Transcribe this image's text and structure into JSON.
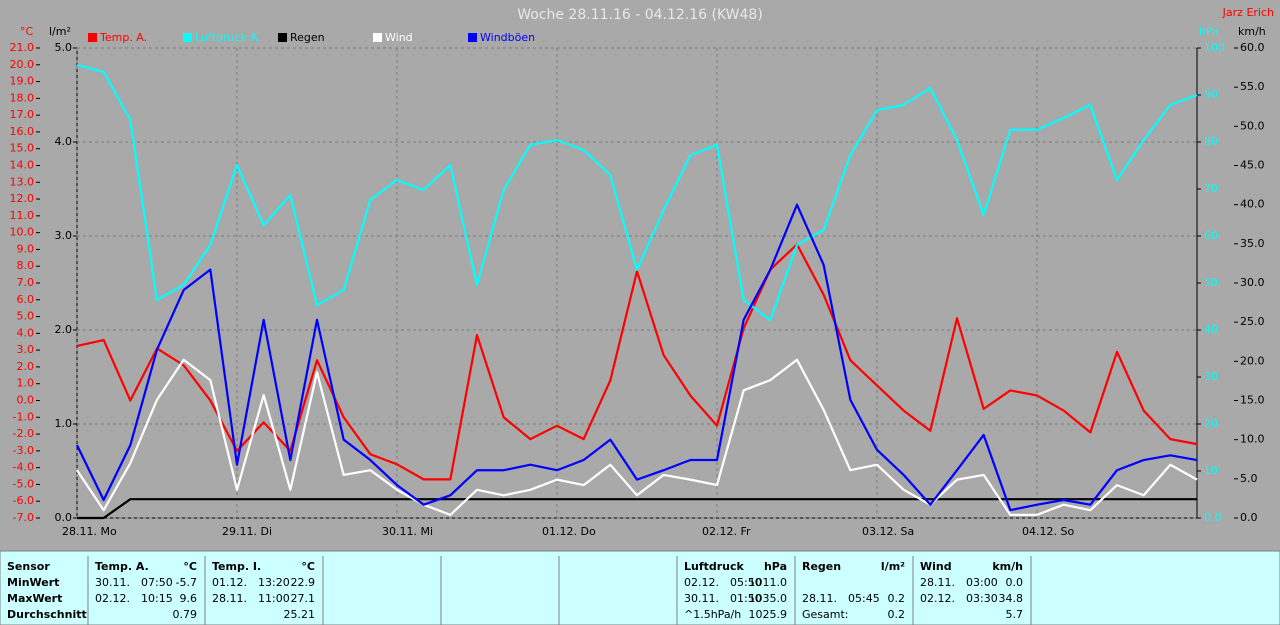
{
  "chart_data": {
    "type": "line",
    "title": "Woche 28.11.16 - 04.12.16 (KW48)",
    "author": "Jarz Erich",
    "y_unit": "°C",
    "y2_unit": "l/m²",
    "y3_unit": "hPa",
    "y4_unit": "km/h",
    "x": [
      0,
      4,
      8,
      12,
      16,
      20,
      24,
      28,
      32,
      36,
      40,
      44,
      48,
      52,
      56,
      60,
      64,
      68,
      72,
      76,
      80,
      84,
      88,
      92,
      96,
      100,
      104,
      108,
      112,
      116,
      120,
      124,
      128,
      132,
      136,
      140,
      144,
      148,
      152,
      156,
      160,
      164,
      168
    ],
    "xlim": [
      0,
      168
    ],
    "xticks": [
      {
        "value": 0,
        "label": "28.11. Mo"
      },
      {
        "value": 24,
        "label": "29.11. Di"
      },
      {
        "value": 48,
        "label": "30.11. Mi"
      },
      {
        "value": 72,
        "label": "01.12. Do"
      },
      {
        "value": 96,
        "label": "02.12. Fr"
      },
      {
        "value": 120,
        "label": "03.12. Sa"
      },
      {
        "value": 144,
        "label": "04.12. So"
      }
    ],
    "ylim": [
      -7,
      21
    ],
    "yticks": [
      {
        "value": 21,
        "label": "21.0"
      },
      {
        "value": 20,
        "label": "20.0"
      },
      {
        "value": 19,
        "label": "19.0"
      },
      {
        "value": 18,
        "label": "18.0"
      },
      {
        "value": 17,
        "label": "17.0"
      },
      {
        "value": 16,
        "label": "16.0"
      },
      {
        "value": 15,
        "label": "15.0"
      },
      {
        "value": 14,
        "label": "14.0"
      },
      {
        "value": 13,
        "label": "13.0"
      },
      {
        "value": 12,
        "label": "12.0"
      },
      {
        "value": 11,
        "label": "11.0"
      },
      {
        "value": 10,
        "label": "10.0"
      },
      {
        "value": 9,
        "label": "9.0"
      },
      {
        "value": 8,
        "label": "8.0"
      },
      {
        "value": 7,
        "label": "7.0"
      },
      {
        "value": 6,
        "label": "6.0"
      },
      {
        "value": 5,
        "label": "5.0"
      },
      {
        "value": 4,
        "label": "4.0"
      },
      {
        "value": 3,
        "label": "3.0"
      },
      {
        "value": 2,
        "label": "2.0"
      },
      {
        "value": 1,
        "label": "1.0"
      },
      {
        "value": 0,
        "label": "0.0"
      },
      {
        "value": -1,
        "label": "-1.0"
      },
      {
        "value": -2,
        "label": "-2.0"
      },
      {
        "value": -3,
        "label": "-3.0"
      },
      {
        "value": -4,
        "label": "-4.0"
      },
      {
        "value": -5,
        "label": "-5.0"
      },
      {
        "value": -6,
        "label": "-6.0"
      },
      {
        "value": -7,
        "label": "-7.0"
      }
    ],
    "y2lim": [
      0,
      5
    ],
    "y2ticks": [
      {
        "value": 5,
        "label": "5.0"
      },
      {
        "value": 4,
        "label": "4.0"
      },
      {
        "value": 3,
        "label": "3.0"
      },
      {
        "value": 2,
        "label": "2.0"
      },
      {
        "value": 1,
        "label": "1.0"
      },
      {
        "value": 0,
        "label": "0.0"
      }
    ],
    "y3lim": [
      0,
      100
    ],
    "y3ticks": [
      100,
      90,
      80,
      70,
      60,
      50,
      40,
      30,
      20,
      10,
      {
        "value": 0,
        "label": "0.0"
      }
    ],
    "y4lim": [
      0,
      60
    ],
    "y4ticks": [
      {
        "value": 60,
        "label": "60.0"
      },
      {
        "value": 55,
        "label": "55.0"
      },
      {
        "value": 50,
        "label": "50.0"
      },
      {
        "value": 45,
        "label": "45.0"
      },
      {
        "value": 40,
        "label": "40.0"
      },
      {
        "value": 35,
        "label": "35.0"
      },
      {
        "value": 30,
        "label": "30.0"
      },
      {
        "value": 25,
        "label": "25.0"
      },
      {
        "value": 20,
        "label": "20.0"
      },
      {
        "value": 15,
        "label": "15.0"
      },
      {
        "value": 10,
        "label": "10.0"
      },
      {
        "value": 5,
        "label": "5.0"
      },
      {
        "value": 0,
        "label": "0.0"
      }
    ],
    "grid": true,
    "series": [
      {
        "name": "Temp. A.",
        "color": "#ff0000",
        "axis": "y",
        "values": [
          3.25,
          3.6,
          0.0,
          3.1,
          2.1,
          0.0,
          -3.0,
          -1.3,
          -3.0,
          2.4,
          -1.0,
          -3.2,
          -3.8,
          -4.7,
          -4.7,
          3.9,
          -1.0,
          -2.3,
          -1.5,
          -2.3,
          1.2,
          7.7,
          2.7,
          0.3,
          -1.5,
          4.3,
          7.8,
          9.3,
          6.3,
          2.4,
          0.9,
          -0.6,
          -1.8,
          4.9,
          -0.5,
          0.6,
          0.3,
          -0.6,
          -1.9,
          2.9,
          -0.6,
          -2.3,
          -2.6
        ]
      },
      {
        "name": "Luftdruck A.",
        "color": "#00ffff",
        "axis": "y3",
        "values": [
          96.4,
          94.9,
          84.7,
          46.4,
          49.6,
          58.1,
          75.1,
          62.3,
          68.7,
          45.3,
          48.5,
          67.7,
          71.9,
          69.8,
          75.1,
          49.6,
          69.8,
          79.4,
          80.4,
          78.3,
          73.0,
          52.8,
          65.5,
          77.2,
          79.4,
          46.4,
          42.1,
          58.1,
          61.3,
          77.2,
          86.8,
          87.9,
          91.5,
          80.4,
          64.5,
          82.6,
          82.6,
          85.1,
          87.9,
          71.9,
          80.4,
          87.9,
          90.0
        ]
      },
      {
        "name": "Regen",
        "color": "#000000",
        "axis": "y2",
        "values": [
          0,
          0,
          0.2,
          0.2,
          0.2,
          0.2,
          0.2,
          0.2,
          0.2,
          0.2,
          0.2,
          0.2,
          0.2,
          0.2,
          0.2,
          0.2,
          0.2,
          0.2,
          0.2,
          0.2,
          0.2,
          0.2,
          0.2,
          0.2,
          0.2,
          0.2,
          0.2,
          0.2,
          0.2,
          0.2,
          0.2,
          0.2,
          0.2,
          0.2,
          0.2,
          0.2,
          0.2,
          0.2,
          0.2,
          0.2,
          0.2,
          0.2,
          0.2
        ]
      },
      {
        "name": "Wind",
        "color": "#ffffff",
        "axis": "y4",
        "values": [
          6.1,
          1.0,
          7.0,
          15.1,
          20.2,
          17.6,
          3.6,
          15.7,
          3.6,
          18.6,
          5.5,
          6.1,
          3.6,
          1.7,
          0.4,
          3.6,
          2.9,
          3.6,
          4.9,
          4.2,
          6.8,
          2.9,
          5.5,
          4.9,
          4.2,
          16.3,
          17.6,
          20.2,
          13.8,
          6.1,
          6.8,
          3.6,
          1.7,
          4.9,
          5.5,
          0.4,
          0.4,
          1.7,
          1.0,
          4.2,
          2.9,
          6.8,
          4.9
        ]
      },
      {
        "name": "Windböen",
        "color": "#0000ff",
        "axis": "y4",
        "values": [
          9.3,
          2.3,
          9.3,
          21.5,
          29.1,
          31.7,
          6.8,
          25.3,
          7.4,
          25.3,
          10.0,
          7.4,
          4.2,
          1.7,
          2.9,
          6.1,
          6.1,
          6.8,
          6.1,
          7.4,
          10.0,
          4.9,
          6.1,
          7.4,
          7.4,
          25.3,
          31.7,
          40.0,
          32.3,
          15.1,
          8.7,
          5.5,
          1.7,
          6.1,
          10.6,
          1.0,
          1.7,
          2.3,
          1.7,
          6.1,
          7.4,
          8.0,
          7.4
        ]
      }
    ]
  },
  "table": {
    "rows": [
      [
        "Sensor",
        [
          "Temp. A.",
          "°C"
        ],
        [
          "Temp. I.",
          "°C"
        ],
        [
          "Luftdruck",
          "hPa"
        ],
        [
          "Regen",
          "l/m²"
        ],
        [
          "Wind",
          "km/h"
        ]
      ],
      [
        "MinWert",
        [
          "30.11.",
          "07:50",
          "-5.7"
        ],
        [
          "01.12.",
          "13:20",
          "22.9"
        ],
        [
          "02.12.",
          "05:50",
          "1011.0"
        ],
        [],
        [
          "28.11.",
          "03:00",
          "0.0"
        ]
      ],
      [
        "MaxWert",
        [
          "02.12.",
          "10:15",
          "9.6"
        ],
        [
          "28.11.",
          "11:00",
          "27.1"
        ],
        [
          "30.11.",
          "01:50",
          "1035.0"
        ],
        [
          "28.11.",
          "05:45",
          "0.2"
        ],
        [
          "02.12.",
          "03:30",
          "34.8"
        ]
      ],
      [
        "Durchschnitt",
        [
          "0.79"
        ],
        [
          "25.21"
        ],
        [
          "^1.5hPa/h",
          "1025.9"
        ],
        [
          "Gesamt:",
          "0.2"
        ],
        [
          "5.7"
        ]
      ]
    ]
  }
}
